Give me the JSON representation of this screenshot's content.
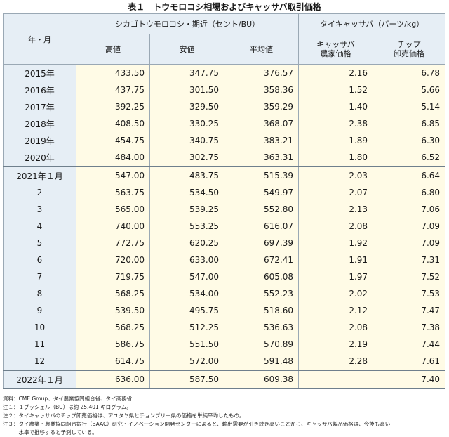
{
  "title": "表１　トウモロコシ相場およびキャッサバ取引価格",
  "headers": {
    "year_month": "年・月",
    "group_corn": "シカゴトウモロコシ・期近（セント/BU）",
    "group_cassava": "タイキャッサバ（バーツ/kg）",
    "high": "高値",
    "low": "安値",
    "average": "平均値",
    "farm_price_l1": "キャッサバ",
    "farm_price_l2": "農家価格",
    "chip_price_l1": "チップ",
    "chip_price_l2": "卸売価格"
  },
  "rows": [
    {
      "label": "2015年",
      "high": "433.50",
      "low": "347.75",
      "avg": "376.57",
      "farm": "2.16",
      "chip": "6.78"
    },
    {
      "label": "2016年",
      "high": "437.75",
      "low": "301.50",
      "avg": "358.36",
      "farm": "1.52",
      "chip": "5.66"
    },
    {
      "label": "2017年",
      "high": "392.25",
      "low": "329.50",
      "avg": "359.29",
      "farm": "1.40",
      "chip": "5.14"
    },
    {
      "label": "2018年",
      "high": "408.50",
      "low": "330.25",
      "avg": "368.07",
      "farm": "2.38",
      "chip": "6.85"
    },
    {
      "label": "2019年",
      "high": "454.75",
      "low": "340.75",
      "avg": "383.21",
      "farm": "1.89",
      "chip": "6.30"
    },
    {
      "label": "2020年",
      "high": "484.00",
      "low": "302.75",
      "avg": "363.31",
      "farm": "1.80",
      "chip": "6.52"
    },
    {
      "label": "2021年１月",
      "high": "547.00",
      "low": "483.75",
      "avg": "515.39",
      "farm": "2.03",
      "chip": "6.64"
    },
    {
      "label": "2",
      "high": "563.75",
      "low": "534.50",
      "avg": "549.97",
      "farm": "2.07",
      "chip": "6.80"
    },
    {
      "label": "3",
      "high": "565.00",
      "low": "539.25",
      "avg": "552.80",
      "farm": "2.13",
      "chip": "7.06"
    },
    {
      "label": "4",
      "high": "740.00",
      "low": "553.25",
      "avg": "616.07",
      "farm": "2.08",
      "chip": "7.09"
    },
    {
      "label": "5",
      "high": "772.75",
      "low": "620.25",
      "avg": "697.39",
      "farm": "1.92",
      "chip": "7.09"
    },
    {
      "label": "6",
      "high": "720.00",
      "low": "633.00",
      "avg": "672.41",
      "farm": "1.91",
      "chip": "7.31"
    },
    {
      "label": "7",
      "high": "719.75",
      "low": "547.00",
      "avg": "605.08",
      "farm": "1.97",
      "chip": "7.52"
    },
    {
      "label": "8",
      "high": "568.25",
      "low": "534.00",
      "avg": "552.23",
      "farm": "2.02",
      "chip": "7.53"
    },
    {
      "label": "9",
      "high": "539.50",
      "low": "495.75",
      "avg": "518.60",
      "farm": "2.12",
      "chip": "7.47"
    },
    {
      "label": "10",
      "high": "568.25",
      "low": "512.25",
      "avg": "536.63",
      "farm": "2.08",
      "chip": "7.38"
    },
    {
      "label": "11",
      "high": "586.75",
      "low": "551.50",
      "avg": "570.89",
      "farm": "2.19",
      "chip": "7.44"
    },
    {
      "label": "12",
      "high": "614.75",
      "low": "572.00",
      "avg": "591.48",
      "farm": "2.28",
      "chip": "7.61"
    },
    {
      "label": "2022年１月",
      "high": "636.00",
      "low": "587.50",
      "avg": "609.38",
      "farm": "",
      "chip": "7.40"
    }
  ],
  "notes": [
    "資料：CME Group、タイ農業協同組合省、タイ商務省",
    "注１：１ブッシェル（BU）は約 25.401 キログラム。",
    "注２：タイキャッサバのチップ卸売価格は、アユタヤ県とチョンブリー県の価格を単純平均したもの。",
    "注３：タイ農業・農業協同組合銀行（BAAC）研究・イノベーション開発センターによると、輸出需要が引き続き高いことから、キャッサバ製品価格は、今後も高い",
    "　　　水準で推移すると予測している。"
  ]
}
